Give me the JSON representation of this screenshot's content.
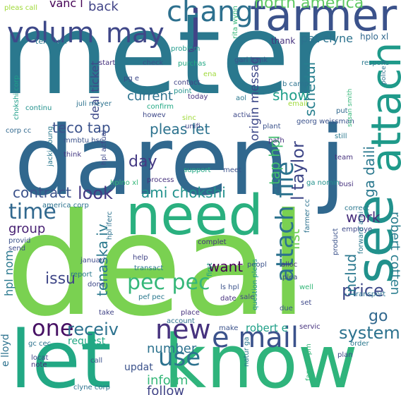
{
  "wordcloud": {
    "words": [
      {
        "text": "meter",
        "color": "#2a788e"
      },
      {
        "text": "deal",
        "color": "#7ad151"
      },
      {
        "text": "daren j",
        "color": "#31688e"
      },
      {
        "text": "let",
        "color": "#22a884"
      },
      {
        "text": "know",
        "color": "#2fb47c"
      },
      {
        "text": "need",
        "color": "#2ab07f"
      },
      {
        "text": "see",
        "color": "#21918c"
      },
      {
        "text": "attach",
        "color": "#1f9a8a"
      },
      {
        "text": "attach file",
        "color": "#2c728e"
      },
      {
        "text": "farmer",
        "color": "#3b528b"
      },
      {
        "text": "volum",
        "color": "#3e4989"
      },
      {
        "text": "may",
        "color": "#3f4788"
      },
      {
        "text": "chang",
        "color": "#2d708e"
      },
      {
        "text": "j",
        "color": "#414487"
      },
      {
        "text": "north america",
        "color": "#5ec962"
      },
      {
        "text": "e mail",
        "color": "#3b528b"
      },
      {
        "text": "new",
        "color": "#46327e"
      },
      {
        "text": "one",
        "color": "#471164"
      },
      {
        "text": "use",
        "color": "#2c728e"
      },
      {
        "text": "time",
        "color": "#31688e"
      },
      {
        "text": "pec pec",
        "color": "#35b779"
      },
      {
        "text": "contract",
        "color": "#3b528b"
      },
      {
        "text": "look",
        "color": "#443983"
      },
      {
        "text": "ami chokshi",
        "color": "#21918c"
      },
      {
        "text": "tenaska iv",
        "color": "#2a788e"
      },
      {
        "text": "receiv",
        "color": "#2c728e"
      },
      {
        "text": "l taylor",
        "color": "#3f4788"
      },
      {
        "text": "system",
        "color": "#2c728e"
      },
      {
        "text": "robert e",
        "color": "#1fa088"
      },
      {
        "text": "robert cotten",
        "color": "#287d8e"
      },
      {
        "text": "price",
        "color": "#3e4989"
      },
      {
        "text": "work",
        "color": "#472d7b"
      },
      {
        "text": "includ",
        "color": "#2a788e"
      },
      {
        "text": "go",
        "color": "#31688e"
      },
      {
        "text": "day",
        "color": "#443983"
      },
      {
        "text": "pleas let",
        "color": "#2c728e"
      },
      {
        "text": "teco tap",
        "color": "#3b528b"
      },
      {
        "text": "current",
        "color": "#2c728e"
      },
      {
        "text": "show",
        "color": "#1f9e89"
      },
      {
        "text": "schedul",
        "color": "#277f8e"
      },
      {
        "text": "origin messag",
        "color": "#3e4989"
      },
      {
        "text": "ga daili",
        "color": "#2a788e"
      },
      {
        "text": "tap hpl",
        "color": "#44bf70"
      },
      {
        "text": "list",
        "color": "#6ece58"
      },
      {
        "text": "group",
        "color": "#482173"
      },
      {
        "text": "issu",
        "color": "#3f4788"
      },
      {
        "text": "want",
        "color": "#440154"
      },
      {
        "text": "hpl nom",
        "color": "#2a788e"
      },
      {
        "text": "number",
        "color": "#2c728e"
      },
      {
        "text": "inform",
        "color": "#35b779"
      },
      {
        "text": "follow",
        "color": "#414487"
      },
      {
        "text": "request",
        "color": "#22a884"
      },
      {
        "text": "updat",
        "color": "#3b528b"
      },
      {
        "text": "e lloyd",
        "color": "#2c728e"
      },
      {
        "text": "deal ticket",
        "color": "#3e4989"
      },
      {
        "text": "back",
        "color": "#414487"
      },
      {
        "text": "vanc l",
        "color": "#440154"
      },
      {
        "text": "pat clyne",
        "color": "#2c728e"
      },
      {
        "text": "thank",
        "color": "#46327e"
      },
      {
        "text": "hplo xl",
        "color": "#31688e"
      },
      {
        "text": "rita wynn",
        "color": "#35b779"
      },
      {
        "text": "pleas call",
        "color": "#a0da39"
      },
      {
        "text": "texa util",
        "color": "#2a788e"
      },
      {
        "text": "start",
        "color": "#46327e"
      },
      {
        "text": "check",
        "color": "#3b528b"
      },
      {
        "text": "problem",
        "color": "#1f9a8a"
      },
      {
        "text": "purchas",
        "color": "#22a884"
      },
      {
        "text": "pg e",
        "color": "#3e4989"
      },
      {
        "text": "gari hank",
        "color": "#3b528b"
      },
      {
        "text": "contact",
        "color": "#414487"
      },
      {
        "text": "point",
        "color": "#21918c"
      },
      {
        "text": "b camp",
        "color": "#2c728e"
      },
      {
        "text": "respons",
        "color": "#2a788e"
      },
      {
        "text": "continu",
        "color": "#21918c"
      },
      {
        "text": "chokshi corp",
        "color": "#1f9e89"
      },
      {
        "text": "juli meyer",
        "color": "#2c728e"
      },
      {
        "text": "today",
        "color": "#46327e"
      },
      {
        "text": "confirm",
        "color": "#22a884"
      },
      {
        "text": "aol",
        "color": "#2a788e"
      },
      {
        "text": "activ",
        "color": "#3e4989"
      },
      {
        "text": "email",
        "color": "#9fda3a"
      },
      {
        "text": "georg weissman",
        "color": "#3b528b"
      },
      {
        "text": "put",
        "color": "#31688e"
      },
      {
        "text": "howev",
        "color": "#3e4989"
      },
      {
        "text": "sinc",
        "color": "#9fda3a"
      },
      {
        "text": "unifi",
        "color": "#414487"
      },
      {
        "text": "plant",
        "color": "#3b528b"
      },
      {
        "text": "path",
        "color": "#46327e"
      },
      {
        "text": "still",
        "color": "#2a788e"
      },
      {
        "text": "corp cc",
        "color": "#31688e"
      },
      {
        "text": "mmbtu hsc",
        "color": "#3b528b"
      },
      {
        "text": "think",
        "color": "#443983"
      },
      {
        "text": "jacki young",
        "color": "#2a788e"
      },
      {
        "text": "hpl actual",
        "color": "#3e4989"
      },
      {
        "text": "process",
        "color": "#46327e"
      },
      {
        "text": "support",
        "color": "#22a884"
      },
      {
        "text": "meet",
        "color": "#3b528b"
      },
      {
        "text": "team",
        "color": "#46327e"
      },
      {
        "text": "ga nomin",
        "color": "#21918c"
      },
      {
        "text": "hplno xl",
        "color": "#35b779"
      },
      {
        "text": "america corp",
        "color": "#2c728e"
      },
      {
        "text": "busi",
        "color": "#46327e"
      },
      {
        "text": "correct",
        "color": "#2a788e"
      },
      {
        "text": "employe",
        "color": "#3e4989"
      },
      {
        "text": "farmer cc",
        "color": "#2c728e"
      },
      {
        "text": "provid",
        "color": "#3b528b"
      },
      {
        "text": "send",
        "color": "#3e4989"
      },
      {
        "text": "complet",
        "color": "#46327e"
      },
      {
        "text": "hpl iferc",
        "color": "#2c728e"
      },
      {
        "text": "januari",
        "color": "#3e4989"
      },
      {
        "text": "report",
        "color": "#2a788e"
      },
      {
        "text": "help",
        "color": "#414487"
      },
      {
        "text": "transact",
        "color": "#2a788e"
      },
      {
        "text": "first",
        "color": "#1f9e89"
      },
      {
        "text": "peopl",
        "color": "#3b528b"
      },
      {
        "text": "alloc",
        "color": "#46327e"
      },
      {
        "text": "plea",
        "color": "#3e4989"
      },
      {
        "text": "well",
        "color": "#35b779"
      },
      {
        "text": "product",
        "color": "#3b528b"
      },
      {
        "text": "forward ami",
        "color": "#2a788e"
      },
      {
        "text": "transport",
        "color": "#2c728e"
      },
      {
        "text": "done",
        "color": "#3e4989"
      },
      {
        "text": "pef pec",
        "color": "#2a788e"
      },
      {
        "text": "ls hpl",
        "color": "#3b528b"
      },
      {
        "text": "date",
        "color": "#46327e"
      },
      {
        "text": "sale",
        "color": "#414487"
      },
      {
        "text": "question pleas",
        "color": "#21918c"
      },
      {
        "text": "due",
        "color": "#3b528b"
      },
      {
        "text": "set",
        "color": "#3e4989"
      },
      {
        "text": "take",
        "color": "#414487"
      },
      {
        "text": "place",
        "color": "#46327e"
      },
      {
        "text": "account",
        "color": "#2c728e"
      },
      {
        "text": "make",
        "color": "#3b528b"
      },
      {
        "text": "servic",
        "color": "#46327e"
      },
      {
        "text": "order",
        "color": "#2a788e"
      },
      {
        "text": "gc cec",
        "color": "#2c728e"
      },
      {
        "text": "locat",
        "color": "#3e4989"
      },
      {
        "text": "note",
        "color": "#46327e"
      },
      {
        "text": "call",
        "color": "#3b528b"
      },
      {
        "text": "natur ga",
        "color": "#2a788e"
      },
      {
        "text": "farmer pm",
        "color": "#35b779"
      },
      {
        "text": "plan",
        "color": "#3e4989"
      },
      {
        "text": "clyne corp",
        "color": "#2c728e"
      },
      {
        "text": "susan smith",
        "color": "#35b779"
      },
      {
        "text": "police e",
        "color": "#2c728e"
      },
      {
        "text": "ena",
        "color": "#9fda3a"
      }
    ]
  }
}
